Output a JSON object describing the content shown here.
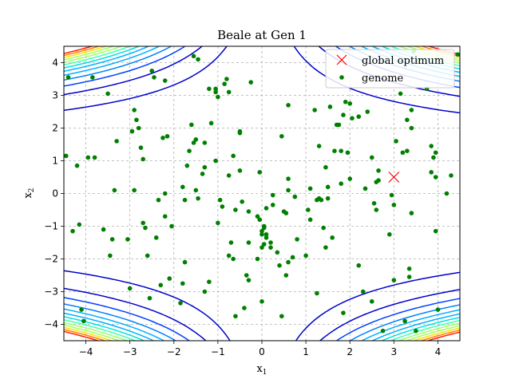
{
  "chart_data": {
    "type": "scatter",
    "title": "Beale at Gen 1",
    "xlabel_base": "x",
    "xlabel_sub": "1",
    "ylabel_base": "x",
    "ylabel_sub": "2",
    "xlim": [
      -4.5,
      4.5
    ],
    "ylim": [
      -4.5,
      4.5
    ],
    "xticks": [
      -4,
      -3,
      -2,
      -1,
      0,
      1,
      2,
      3,
      4
    ],
    "yticks": [
      -4,
      -3,
      -2,
      -1,
      0,
      1,
      2,
      3,
      4
    ],
    "grid": true,
    "legend_position": "top-right",
    "legend": [
      {
        "label": "global optimum",
        "marker": "x",
        "color": "#ff0000"
      },
      {
        "label": "genome",
        "marker": "dot",
        "color": "#008000"
      }
    ],
    "optimum": {
      "x": 3.0,
      "y": 0.5
    },
    "contour_colors": [
      "#0000cc",
      "#0040ff",
      "#0080ff",
      "#00b0ff",
      "#00e0e0",
      "#40ffb0",
      "#a0ff60",
      "#ffe000",
      "#ff8000",
      "#ff2000"
    ],
    "genome": {
      "name": "genome",
      "color": "#008000",
      "points": [
        [
          -4.4,
          3.55
        ],
        [
          -4.45,
          1.15
        ],
        [
          -4.2,
          0.85
        ],
        [
          -4.3,
          -1.15
        ],
        [
          -4.15,
          -0.95
        ],
        [
          -4.1,
          -3.55
        ],
        [
          -4.05,
          -3.9
        ],
        [
          -3.95,
          1.1
        ],
        [
          -3.8,
          1.1
        ],
        [
          -3.6,
          -1.1
        ],
        [
          -3.5,
          3.05
        ],
        [
          -3.45,
          -1.9
        ],
        [
          -3.4,
          -1.4
        ],
        [
          -3.35,
          0.1
        ],
        [
          -3.3,
          1.6
        ],
        [
          -3.05,
          -1.4
        ],
        [
          -3.0,
          -2.9
        ],
        [
          -2.95,
          1.9
        ],
        [
          -2.9,
          2.55
        ],
        [
          -2.9,
          0.1
        ],
        [
          -2.85,
          2.25
        ],
        [
          -2.8,
          2.0
        ],
        [
          -2.75,
          1.4
        ],
        [
          -2.7,
          1.05
        ],
        [
          -2.7,
          -0.9
        ],
        [
          -2.65,
          -1.05
        ],
        [
          -2.6,
          -1.9
        ],
        [
          -2.55,
          -3.2
        ],
        [
          -2.5,
          3.75
        ],
        [
          -2.45,
          3.55
        ],
        [
          -2.4,
          -1.35
        ],
        [
          -2.35,
          -0.2
        ],
        [
          -2.3,
          -2.8
        ],
        [
          -2.25,
          1.7
        ],
        [
          -2.2,
          3.45
        ],
        [
          -2.2,
          0.0
        ],
        [
          -2.2,
          -0.7
        ],
        [
          -2.15,
          1.75
        ],
        [
          -2.1,
          -2.6
        ],
        [
          -2.05,
          -1.0
        ],
        [
          -1.85,
          -3.35
        ],
        [
          -1.8,
          -2.75
        ],
        [
          -1.75,
          -2.1
        ],
        [
          -1.75,
          -0.2
        ],
        [
          -1.8,
          0.2
        ],
        [
          -1.7,
          0.85
        ],
        [
          -1.65,
          1.3
        ],
        [
          -1.6,
          2.1
        ],
        [
          -1.55,
          1.55
        ],
        [
          -1.5,
          1.65
        ],
        [
          -1.5,
          0.1
        ],
        [
          -1.45,
          -0.15
        ],
        [
          -1.55,
          4.2
        ],
        [
          -1.45,
          4.1
        ],
        [
          -1.35,
          0.6
        ],
        [
          -1.3,
          1.55
        ],
        [
          -1.3,
          0.8
        ],
        [
          -1.3,
          -3.0
        ],
        [
          -1.2,
          3.2
        ],
        [
          -1.2,
          -2.7
        ],
        [
          -1.15,
          2.15
        ],
        [
          -1.05,
          3.2
        ],
        [
          -1.05,
          3.1
        ],
        [
          -1.0,
          2.95
        ],
        [
          -1.05,
          1.0
        ],
        [
          -1.0,
          -0.9
        ],
        [
          -0.95,
          -0.2
        ],
        [
          -0.9,
          -0.4
        ],
        [
          -0.85,
          3.35
        ],
        [
          -0.8,
          3.5
        ],
        [
          -0.75,
          3.1
        ],
        [
          -0.75,
          -1.9
        ],
        [
          -0.75,
          0.55
        ],
        [
          -0.7,
          -1.5
        ],
        [
          -0.65,
          -2.0
        ],
        [
          -0.65,
          1.15
        ],
        [
          -0.6,
          -3.75
        ],
        [
          -0.6,
          -0.5
        ],
        [
          -0.5,
          1.9
        ],
        [
          -0.5,
          1.85
        ],
        [
          -0.5,
          0.7
        ],
        [
          -0.45,
          -0.25
        ],
        [
          -0.4,
          -3.5
        ],
        [
          -0.35,
          -2.5
        ],
        [
          -0.3,
          -2.65
        ],
        [
          -0.3,
          -1.5
        ],
        [
          -0.3,
          -0.55
        ],
        [
          -0.25,
          3.4
        ],
        [
          -0.1,
          -2.0
        ],
        [
          -0.1,
          -0.7
        ],
        [
          -0.05,
          -0.8
        ],
        [
          -0.05,
          0.65
        ],
        [
          0.0,
          -1.15
        ],
        [
          0.0,
          -1.25
        ],
        [
          0.05,
          -1.0
        ],
        [
          0.05,
          -1.05
        ],
        [
          0.0,
          -1.65
        ],
        [
          0.05,
          -1.55
        ],
        [
          0.0,
          -3.3
        ],
        [
          0.1,
          -0.45
        ],
        [
          0.1,
          -1.35
        ],
        [
          0.1,
          -1.25
        ],
        [
          0.2,
          -1.65
        ],
        [
          0.2,
          -1.5
        ],
        [
          0.25,
          -0.35
        ],
        [
          0.25,
          -0.05
        ],
        [
          0.35,
          -1.8
        ],
        [
          0.4,
          -2.2
        ],
        [
          0.45,
          -3.75
        ],
        [
          0.45,
          1.75
        ],
        [
          0.5,
          -0.55
        ],
        [
          0.55,
          -0.6
        ],
        [
          0.55,
          -2.5
        ],
        [
          0.6,
          -2.1
        ],
        [
          0.6,
          2.7
        ],
        [
          0.6,
          0.45
        ],
        [
          0.6,
          0.1
        ],
        [
          0.7,
          -1.95
        ],
        [
          0.75,
          -0.1
        ],
        [
          0.8,
          -1.4
        ],
        [
          1.0,
          -1.9
        ],
        [
          1.05,
          -0.5
        ],
        [
          1.1,
          -0.8
        ],
        [
          1.1,
          0.15
        ],
        [
          1.2,
          2.55
        ],
        [
          1.25,
          -0.2
        ],
        [
          1.25,
          -3.05
        ],
        [
          1.3,
          1.45
        ],
        [
          1.3,
          -0.15
        ],
        [
          1.35,
          -0.2
        ],
        [
          1.4,
          -1.05
        ],
        [
          1.45,
          -1.65
        ],
        [
          1.45,
          0.8
        ],
        [
          1.5,
          0.2
        ],
        [
          1.5,
          -0.15
        ],
        [
          1.55,
          2.65
        ],
        [
          1.6,
          -1.35
        ],
        [
          1.65,
          1.3
        ],
        [
          1.7,
          2.1
        ],
        [
          1.75,
          2.1
        ],
        [
          1.8,
          1.3
        ],
        [
          1.8,
          0.3
        ],
        [
          1.85,
          2.4
        ],
        [
          1.85,
          -3.65
        ],
        [
          1.9,
          2.8
        ],
        [
          1.95,
          1.25
        ],
        [
          2.0,
          0.45
        ],
        [
          2.0,
          2.75
        ],
        [
          2.05,
          2.3
        ],
        [
          2.2,
          2.35
        ],
        [
          2.2,
          -2.2
        ],
        [
          2.3,
          -3.0
        ],
        [
          2.35,
          0.15
        ],
        [
          2.4,
          2.5
        ],
        [
          2.5,
          -3.3
        ],
        [
          2.5,
          1.1
        ],
        [
          2.55,
          -0.3
        ],
        [
          2.6,
          -0.5
        ],
        [
          2.6,
          0.35
        ],
        [
          2.65,
          0.7
        ],
        [
          2.65,
          0.4
        ],
        [
          2.75,
          -4.2
        ],
        [
          2.9,
          -1.25
        ],
        [
          3.0,
          -0.35
        ],
        [
          3.0,
          -2.65
        ],
        [
          3.05,
          1.6
        ],
        [
          3.15,
          3.05
        ],
        [
          3.2,
          1.25
        ],
        [
          3.25,
          -3.9
        ],
        [
          3.3,
          2.25
        ],
        [
          3.3,
          1.3
        ],
        [
          3.35,
          -2.55
        ],
        [
          3.35,
          -2.3
        ],
        [
          3.4,
          2.55
        ],
        [
          3.4,
          2.0
        ],
        [
          3.4,
          -0.6
        ],
        [
          3.45,
          4.35
        ],
        [
          3.5,
          -4.2
        ],
        [
          3.55,
          4.05
        ],
        [
          3.75,
          3.2
        ],
        [
          3.85,
          1.45
        ],
        [
          3.85,
          0.65
        ],
        [
          3.9,
          1.1
        ],
        [
          3.95,
          1.25
        ],
        [
          3.95,
          0.5
        ],
        [
          3.95,
          -1.15
        ],
        [
          4.0,
          -3.55
        ],
        [
          4.2,
          0.0
        ],
        [
          4.3,
          0.55
        ],
        [
          4.45,
          4.25
        ],
        [
          -3.85,
          3.55
        ],
        [
          2.95,
          -0.05
        ]
      ]
    }
  }
}
